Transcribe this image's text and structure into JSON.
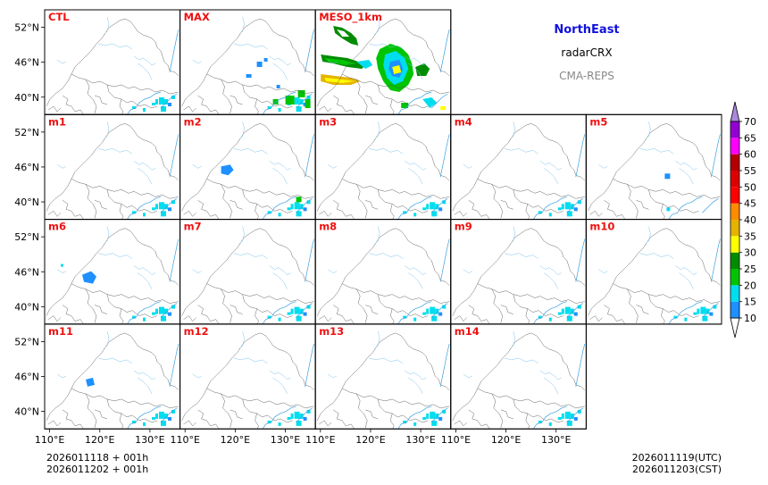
{
  "panels": [
    {
      "label": "CTL",
      "echo": "light_se"
    },
    {
      "label": "MAX",
      "echo": "max"
    },
    {
      "label": "MESO_1km",
      "echo": "meso"
    },
    {
      "label": "m1",
      "echo": "light_se"
    },
    {
      "label": "m2",
      "echo": "m2"
    },
    {
      "label": "m3",
      "echo": "light_se"
    },
    {
      "label": "m4",
      "echo": "light_se"
    },
    {
      "label": "m5",
      "echo": "m5"
    },
    {
      "label": "m6",
      "echo": "m6"
    },
    {
      "label": "m7",
      "echo": "light_se"
    },
    {
      "label": "m8",
      "echo": "light_se"
    },
    {
      "label": "m9",
      "echo": "light_se"
    },
    {
      "label": "m10",
      "echo": "light_se"
    },
    {
      "label": "m11",
      "echo": "m11"
    },
    {
      "label": "m12",
      "echo": "light_se"
    },
    {
      "label": "m13",
      "echo": "light_se"
    },
    {
      "label": "m14",
      "echo": "light_se"
    }
  ],
  "lat_ticks": [
    "52°N",
    "46°N",
    "40°N"
  ],
  "lon_ticks": [
    "110°E",
    "120°E",
    "130°E"
  ],
  "map_extent": {
    "lon": [
      109,
      136
    ],
    "lat": [
      37,
      55
    ]
  },
  "info": {
    "region": "NorthEast",
    "variable": "radarCRX",
    "model": "CMA-REPS"
  },
  "footer": {
    "init_utc": "2026011118  +  001h",
    "init_cst": "2026011202  +  001h",
    "valid_utc": "2026011119(UTC)",
    "valid_cst": "2026011203(CST)"
  },
  "colorbar": {
    "levels": [
      "10",
      "15",
      "20",
      "25",
      "30",
      "35",
      "40",
      "45",
      "50",
      "55",
      "60",
      "65",
      "70"
    ],
    "colors": [
      "#1e90ff",
      "#00ddee",
      "#00c400",
      "#008c00",
      "#ffff00",
      "#e6b400",
      "#ff8c00",
      "#ff0000",
      "#dd0000",
      "#b40000",
      "#ff00ff",
      "#9400d3"
    ],
    "over_color": "#aa88dd",
    "under_color": "#ffffff"
  },
  "colors": {
    "panel_label": "#ee1111",
    "region": "#1111dd",
    "model": "#888888"
  }
}
